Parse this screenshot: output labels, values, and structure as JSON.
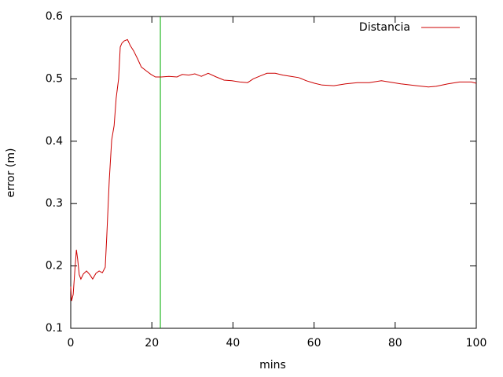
{
  "chart_data": {
    "type": "line",
    "xlabel": "mins",
    "ylabel": "error (m)",
    "x": [
      0,
      0.2,
      0.6,
      1.0,
      1.4,
      1.7,
      2.1,
      2.5,
      3.1,
      3.9,
      4.7,
      5.4,
      6.2,
      7.0,
      7.8,
      8.5,
      8.9,
      9.5,
      10.1,
      10.7,
      11.2,
      11.8,
      12.2,
      12.6,
      13.2,
      14.0,
      14.7,
      15.5,
      16.5,
      17.4,
      18.6,
      19.8,
      20.9,
      22.3,
      24.2,
      26.2,
      27.5,
      29.1,
      30.6,
      32.2,
      33.9,
      35.9,
      37.8,
      39.7,
      41.7,
      43.6,
      45.0,
      46.5,
      48.4,
      50.4,
      52.3,
      54.3,
      56.2,
      58.1,
      60.1,
      62.0,
      64.9,
      67.8,
      70.7,
      73.6,
      76.6,
      78.5,
      81.4,
      85.3,
      88.2,
      90.1,
      93.0,
      95.9,
      98.8,
      100
    ],
    "series": [
      {
        "name": "Distancia",
        "color": "#cc0000",
        "values": [
          0.167,
          0.144,
          0.154,
          0.192,
          0.226,
          0.211,
          0.186,
          0.179,
          0.187,
          0.192,
          0.186,
          0.179,
          0.188,
          0.192,
          0.189,
          0.198,
          0.249,
          0.337,
          0.402,
          0.425,
          0.469,
          0.5,
          0.551,
          0.557,
          0.561,
          0.563,
          0.553,
          0.545,
          0.532,
          0.519,
          0.513,
          0.507,
          0.503,
          0.503,
          0.504,
          0.503,
          0.507,
          0.506,
          0.508,
          0.504,
          0.509,
          0.503,
          0.498,
          0.497,
          0.495,
          0.494,
          0.5,
          0.504,
          0.509,
          0.509,
          0.506,
          0.504,
          0.502,
          0.497,
          0.493,
          0.49,
          0.489,
          0.492,
          0.494,
          0.494,
          0.497,
          0.495,
          0.492,
          0.489,
          0.487,
          0.488,
          0.492,
          0.495,
          0.495,
          0.493
        ]
      }
    ],
    "vline": {
      "x": 22.1,
      "color": "#00aa00"
    },
    "xlim": [
      0,
      100
    ],
    "xticks": [
      0,
      20,
      40,
      60,
      80,
      100
    ],
    "ylim": [
      0.1,
      0.6
    ],
    "yticks": [
      0.1,
      0.2,
      0.3,
      0.4,
      0.5,
      0.6
    ],
    "legend": "top-right"
  }
}
